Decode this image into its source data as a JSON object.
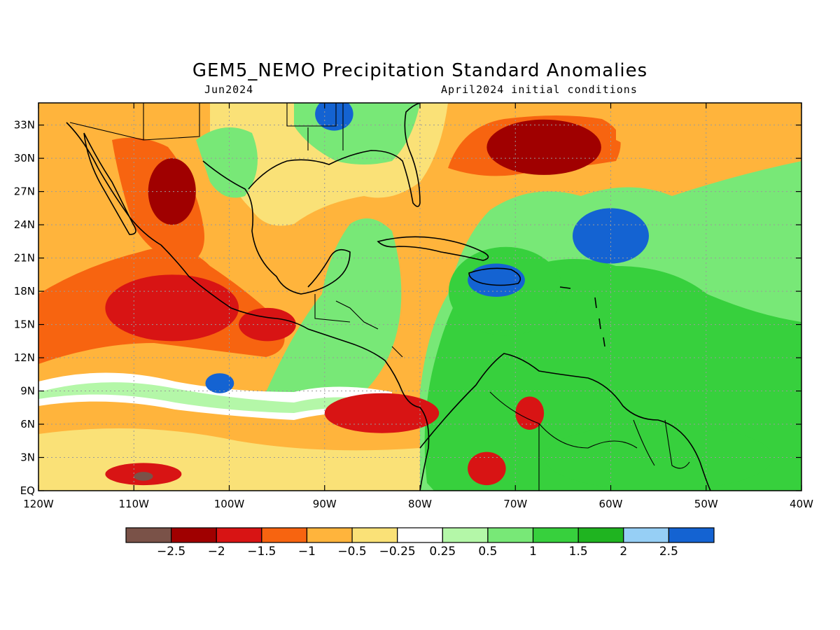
{
  "title": "GEM5_NEMO Precipitation Standard Anomalies",
  "valid_month": "Jun2024",
  "init_conditions": "April2024 initial conditions",
  "map": {
    "lon_range": [
      -120,
      -40
    ],
    "lat_range": [
      0,
      35
    ],
    "x_ticks": [
      {
        "lon": -120,
        "label": "120W"
      },
      {
        "lon": -110,
        "label": "110W"
      },
      {
        "lon": -100,
        "label": "100W"
      },
      {
        "lon": -90,
        "label": "90W"
      },
      {
        "lon": -80,
        "label": "80W"
      },
      {
        "lon": -70,
        "label": "70W"
      },
      {
        "lon": -60,
        "label": "60W"
      },
      {
        "lon": -50,
        "label": "50W"
      },
      {
        "lon": -40,
        "label": "40W"
      }
    ],
    "y_ticks": [
      {
        "lat": 0,
        "label": "EQ"
      },
      {
        "lat": 3,
        "label": "3N"
      },
      {
        "lat": 6,
        "label": "6N"
      },
      {
        "lat": 9,
        "label": "9N"
      },
      {
        "lat": 12,
        "label": "12N"
      },
      {
        "lat": 15,
        "label": "15N"
      },
      {
        "lat": 18,
        "label": "18N"
      },
      {
        "lat": 21,
        "label": "21N"
      },
      {
        "lat": 24,
        "label": "24N"
      },
      {
        "lat": 27,
        "label": "27N"
      },
      {
        "lat": 30,
        "label": "30N"
      },
      {
        "lat": 33,
        "label": "33N"
      }
    ],
    "gridlines": true,
    "ocean_background_color": "#ffb43c"
  },
  "colorbar": {
    "colors": [
      "#7a5248",
      "#a00000",
      "#d81414",
      "#f76410",
      "#ffb43c",
      "#fae177",
      "#ffffff",
      "#b4f7a8",
      "#78e877",
      "#37d03d",
      "#1fb420",
      "#96cff5",
      "#1463d2"
    ],
    "labels": [
      "−2.5",
      "−2",
      "−1.5",
      "−1",
      "−0.5",
      "−0.25",
      "0.25",
      "0.5",
      "1",
      "1.5",
      "2",
      "2.5"
    ]
  },
  "anomaly_regions": [
    {
      "name": "eastern-pacific-dry-band",
      "level": -1.5,
      "color": "#d81414",
      "center": [
        -106,
        16.5
      ],
      "radius": [
        7,
        3
      ]
    },
    {
      "name": "mexico-west-coast-dry",
      "level": -2,
      "color": "#a00000",
      "center": [
        -106,
        27
      ],
      "radius": [
        2.5,
        3
      ]
    },
    {
      "name": "gulf-of-tehuantepec-dry",
      "level": -1.5,
      "color": "#d81414",
      "center": [
        -96,
        15
      ],
      "radius": [
        3,
        1.5
      ]
    },
    {
      "name": "pacific-equatorial-dry",
      "level": -1.5,
      "color": "#d81414",
      "center": [
        -109,
        1.5
      ],
      "radius": [
        4,
        1
      ]
    },
    {
      "name": "pacific-equatorial-dark",
      "level": -2.5,
      "color": "#7a5248",
      "center": [
        -109,
        1.3
      ],
      "radius": [
        1,
        0.4
      ]
    },
    {
      "name": "panama-pacific-dry",
      "level": -1.5,
      "color": "#d81414",
      "center": [
        -84,
        7
      ],
      "radius": [
        6,
        1.8
      ]
    },
    {
      "name": "atlantic-subtropical-dry",
      "level": -2,
      "color": "#a00000",
      "center": [
        -67,
        31
      ],
      "radius": [
        6,
        2.5
      ]
    },
    {
      "name": "colombia-dry",
      "level": -1.5,
      "color": "#d81414",
      "center": [
        -73,
        2
      ],
      "radius": [
        2,
        1.5
      ]
    },
    {
      "name": "venezuela-dry",
      "level": -1.5,
      "color": "#d81414",
      "center": [
        -68.5,
        7
      ],
      "radius": [
        1.5,
        1.5
      ]
    },
    {
      "name": "caribbean-wet",
      "level": 1.5,
      "color": "#37d03d",
      "center": [
        -71,
        18
      ],
      "radius": [
        6,
        4
      ]
    },
    {
      "name": "hispaniola-very-wet",
      "level": 2.5,
      "color": "#1463d2",
      "center": [
        -72,
        19
      ],
      "radius": [
        3,
        1.5
      ]
    },
    {
      "name": "atlantic-very-wet",
      "level": 2.5,
      "color": "#1463d2",
      "center": [
        -60,
        23
      ],
      "radius": [
        4,
        2.5
      ]
    },
    {
      "name": "pacific-itcz-very-wet",
      "level": 2.5,
      "color": "#1463d2",
      "center": [
        -101,
        9.7
      ],
      "radius": [
        1.5,
        0.9
      ]
    },
    {
      "name": "south-america-wet",
      "level": 1.5,
      "color": "#37d03d",
      "center": [
        -55,
        3
      ],
      "radius": [
        12,
        3
      ]
    },
    {
      "name": "southeast-us-wet",
      "level": 2.5,
      "color": "#1463d2",
      "center": [
        -89,
        34
      ],
      "radius": [
        2,
        1.5
      ]
    }
  ]
}
